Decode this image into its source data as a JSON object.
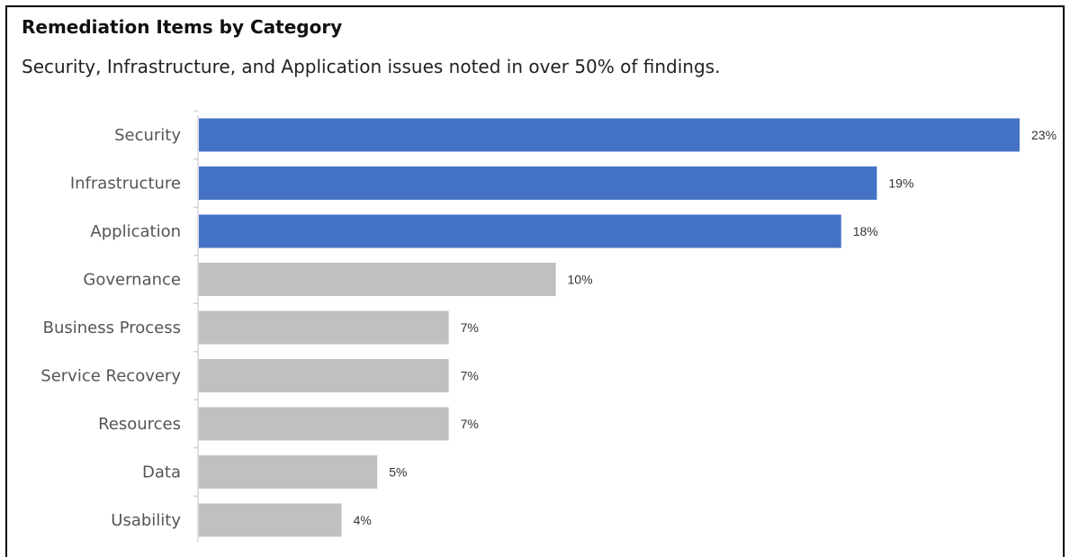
{
  "title": "Remediation Items by Category",
  "subtitle": "Security, Infrastructure, and Application issues noted in over 50% of findings.",
  "colors": {
    "highlight": "#4472c4",
    "base": "#c0c0c0",
    "axis": "#bfbfbf"
  },
  "chart_data": {
    "type": "bar",
    "orientation": "horizontal",
    "title": "Remediation Items by Category",
    "subtitle": "Security, Infrastructure, and Application issues noted in over 50% of findings.",
    "categories": [
      "Security",
      "Infrastructure",
      "Application",
      "Governance",
      "Business Process",
      "Service Recovery",
      "Resources",
      "Data",
      "Usability"
    ],
    "values": [
      23,
      19,
      18,
      10,
      7,
      7,
      7,
      5,
      4
    ],
    "value_labels": [
      "23%",
      "19%",
      "18%",
      "10%",
      "7%",
      "7%",
      "7%",
      "5%",
      "4%"
    ],
    "highlighted": [
      true,
      true,
      true,
      false,
      false,
      false,
      false,
      false,
      false
    ],
    "unit": "%",
    "xlim": [
      0,
      23
    ],
    "grid": false,
    "legend": "none"
  }
}
